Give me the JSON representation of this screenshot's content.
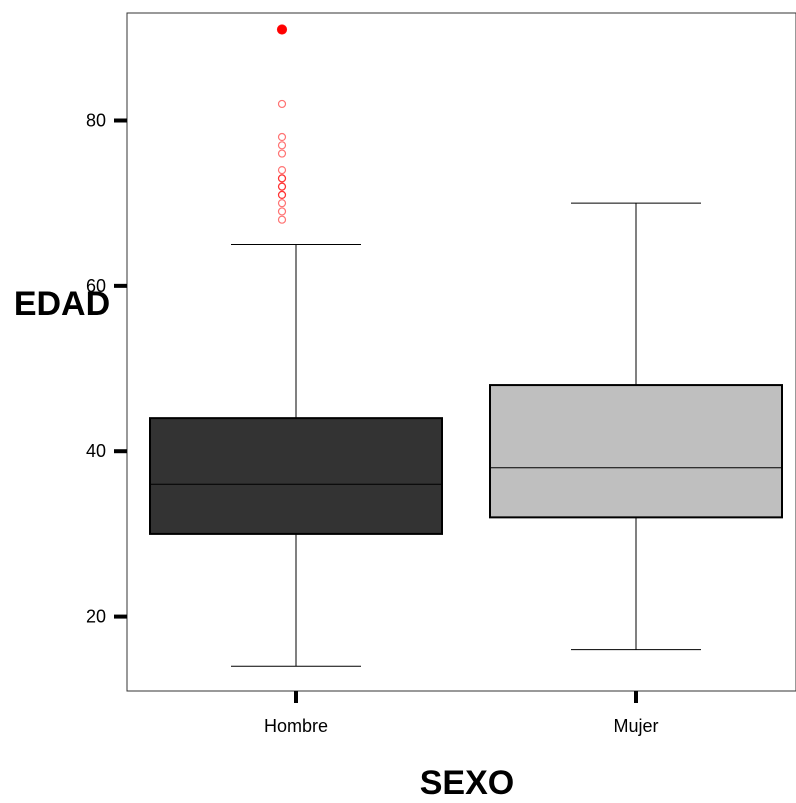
{
  "chart_data": {
    "type": "boxplot",
    "xlabel": "SEXO",
    "ylabel": "EDAD",
    "categories": [
      "Hombre",
      "Mujer"
    ],
    "y_ticks": [
      20,
      40,
      60,
      80
    ],
    "ylim": [
      11,
      93
    ],
    "grid": false,
    "legend": "none",
    "boxes": [
      {
        "category": "Hombre",
        "min": 14,
        "q1": 30,
        "median": 36,
        "q3": 44,
        "max": 65,
        "fill": "#333333",
        "outliers": [
          68,
          69,
          70,
          71,
          71,
          72,
          72,
          73,
          73,
          74,
          76,
          77,
          78,
          82,
          91
        ]
      },
      {
        "category": "Mujer",
        "min": 16,
        "q1": 32,
        "median": 38,
        "q3": 48,
        "max": 70,
        "fill": "#bfbfbf",
        "outliers": []
      }
    ],
    "outlier_color": "#ff0000"
  }
}
